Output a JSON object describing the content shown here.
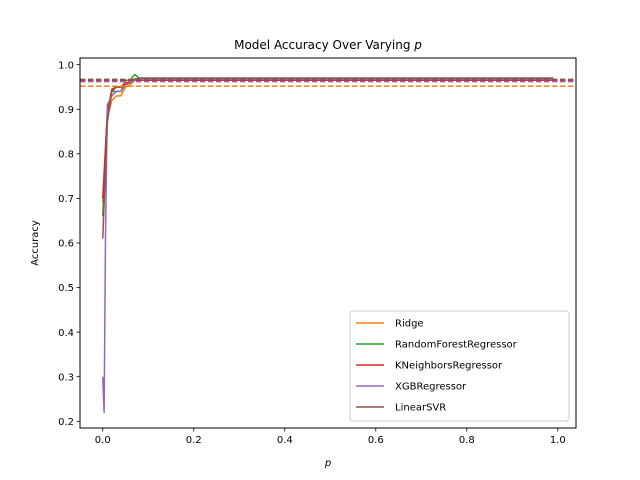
{
  "chart_data": {
    "type": "line",
    "title_prefix": "Model Accuracy Over Varying ",
    "title_var": "p",
    "xlabel": "p",
    "ylabel": "Accuracy",
    "xlim": [
      -0.05,
      1.04
    ],
    "ylim": [
      0.185,
      1.015
    ],
    "xticks": [
      0.0,
      0.2,
      0.4,
      0.6,
      0.8,
      1.0
    ],
    "xtick_labels": [
      "0.0",
      "0.2",
      "0.4",
      "0.6",
      "0.8",
      "1.0"
    ],
    "yticks": [
      0.2,
      0.3,
      0.4,
      0.5,
      0.6,
      0.7,
      0.8,
      0.9,
      1.0
    ],
    "ytick_labels": [
      "0.2",
      "0.3",
      "0.4",
      "0.5",
      "0.6",
      "0.7",
      "0.8",
      "0.9",
      "1.0"
    ],
    "legend_position": "lower-right",
    "series": [
      {
        "name": "Ridge",
        "color": "#ff7f0e",
        "x": [
          0.0,
          0.01,
          0.02,
          0.03,
          0.04,
          0.05,
          0.06,
          0.07,
          0.08,
          0.1,
          0.2,
          0.3,
          0.4,
          0.5,
          0.6,
          0.7,
          0.8,
          0.9,
          0.99
        ],
        "values": [
          0.69,
          0.88,
          0.92,
          0.93,
          0.93,
          0.95,
          0.955,
          0.965,
          0.965,
          0.965,
          0.965,
          0.965,
          0.965,
          0.965,
          0.965,
          0.965,
          0.965,
          0.965,
          0.965
        ],
        "baseline": 0.952
      },
      {
        "name": "RandomForestRegressor",
        "color": "#2ca02c",
        "x": [
          0.0,
          0.01,
          0.02,
          0.03,
          0.04,
          0.05,
          0.06,
          0.07,
          0.08,
          0.1,
          0.2,
          0.3,
          0.4,
          0.5,
          0.6,
          0.7,
          0.8,
          0.9,
          0.99
        ],
        "values": [
          0.66,
          0.9,
          0.94,
          0.94,
          0.94,
          0.965,
          0.965,
          0.978,
          0.97,
          0.968,
          0.968,
          0.968,
          0.968,
          0.968,
          0.968,
          0.968,
          0.968,
          0.968,
          0.968
        ],
        "baseline": 0.965
      },
      {
        "name": "KNeighborsRegressor",
        "color": "#d62728",
        "x": [
          0.0,
          0.01,
          0.02,
          0.03,
          0.04,
          0.05,
          0.06,
          0.07,
          0.08,
          0.1,
          0.2,
          0.3,
          0.4,
          0.5,
          0.6,
          0.7,
          0.8,
          0.9,
          0.99
        ],
        "values": [
          0.7,
          0.89,
          0.945,
          0.95,
          0.95,
          0.96,
          0.96,
          0.965,
          0.965,
          0.965,
          0.965,
          0.965,
          0.965,
          0.965,
          0.965,
          0.965,
          0.965,
          0.965,
          0.965
        ],
        "baseline": 0.964
      },
      {
        "name": "XGBRegressor",
        "color": "#9467bd",
        "x": [
          0.0,
          0.003,
          0.006,
          0.01,
          0.02,
          0.03,
          0.04,
          0.05,
          0.06,
          0.07,
          0.08,
          0.1,
          0.2,
          0.3,
          0.4,
          0.5,
          0.6,
          0.7,
          0.8,
          0.9,
          0.99
        ],
        "values": [
          0.3,
          0.22,
          0.61,
          0.91,
          0.93,
          0.94,
          0.94,
          0.955,
          0.96,
          0.965,
          0.967,
          0.967,
          0.967,
          0.967,
          0.967,
          0.967,
          0.967,
          0.967,
          0.967,
          0.967,
          0.967
        ],
        "baseline": 0.962
      },
      {
        "name": "LinearSVR",
        "color": "#8c564b",
        "x": [
          0.0,
          0.01,
          0.02,
          0.03,
          0.04,
          0.05,
          0.06,
          0.07,
          0.08,
          0.1,
          0.2,
          0.3,
          0.4,
          0.5,
          0.6,
          0.7,
          0.8,
          0.9,
          0.99
        ],
        "values": [
          0.61,
          0.87,
          0.94,
          0.95,
          0.95,
          0.955,
          0.96,
          0.968,
          0.97,
          0.97,
          0.97,
          0.97,
          0.97,
          0.97,
          0.97,
          0.97,
          0.97,
          0.97,
          0.97
        ],
        "baseline": 0.967
      }
    ]
  }
}
